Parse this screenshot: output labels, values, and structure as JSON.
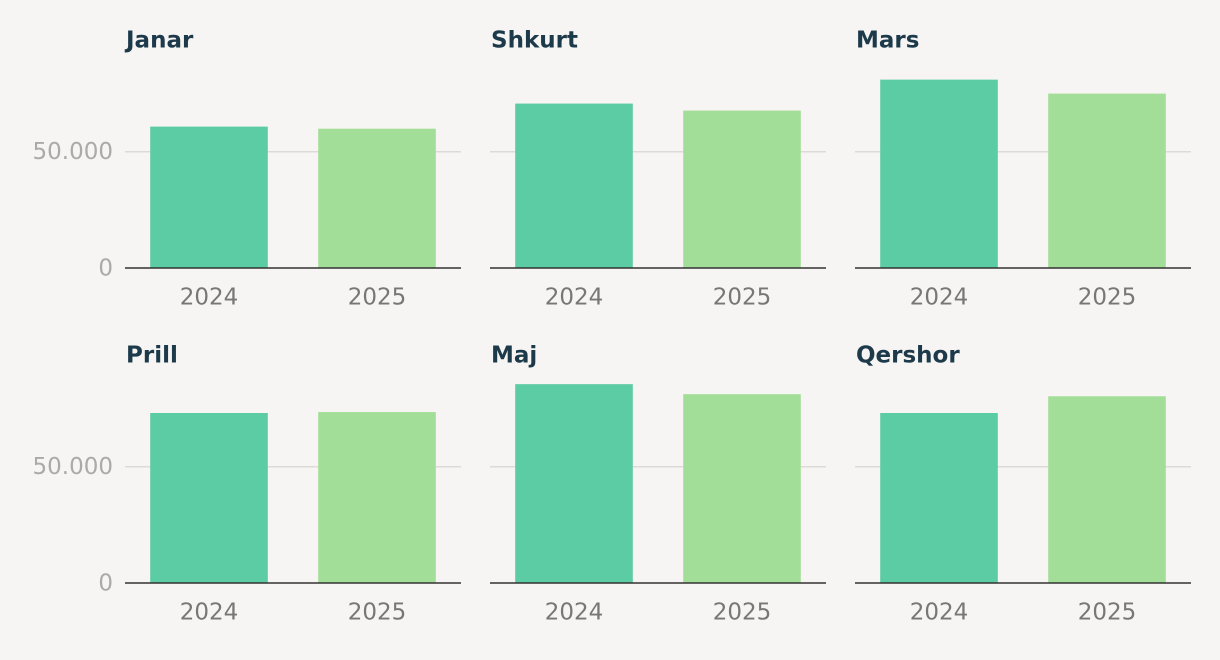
{
  "chart_data": [
    {
      "type": "bar",
      "title": "Janar",
      "categories": [
        "2024",
        "2025"
      ],
      "values": [
        60800,
        59900
      ],
      "colors": [
        "#5ccca4",
        "#a3de98"
      ],
      "ylim": [
        0,
        86000
      ],
      "yticks": [
        0,
        {
          "value": 50000,
          "label": "50.000"
        }
      ],
      "grid": true
    },
    {
      "type": "bar",
      "title": "Shkurt",
      "categories": [
        "2024",
        "2025"
      ],
      "values": [
        70700,
        67700
      ],
      "colors": [
        "#5ccca4",
        "#a3de98"
      ],
      "ylim": [
        0,
        86000
      ],
      "sharey": true,
      "grid": true
    },
    {
      "type": "bar",
      "title": "Mars",
      "categories": [
        "2024",
        "2025"
      ],
      "values": [
        81000,
        75000
      ],
      "colors": [
        "#5ccca4",
        "#a3de98"
      ],
      "ylim": [
        0,
        86000
      ],
      "sharey": true,
      "grid": true
    },
    {
      "type": "bar",
      "title": "Prill",
      "categories": [
        "2024",
        "2025"
      ],
      "values": [
        73100,
        73500
      ],
      "colors": [
        "#5ccca4",
        "#a3de98"
      ],
      "ylim": [
        0,
        86000
      ],
      "yticks": [
        0,
        {
          "value": 50000,
          "label": "50.000"
        }
      ],
      "grid": true
    },
    {
      "type": "bar",
      "title": "Maj",
      "categories": [
        "2024",
        "2025"
      ],
      "values": [
        85500,
        81200
      ],
      "colors": [
        "#5ccca4",
        "#a3de98"
      ],
      "ylim": [
        0,
        86000
      ],
      "sharey": true,
      "grid": true
    },
    {
      "type": "bar",
      "title": "Qershor",
      "categories": [
        "2024",
        "2025"
      ],
      "values": [
        73100,
        80300
      ],
      "colors": [
        "#5ccca4",
        "#a3de98"
      ],
      "ylim": [
        0,
        86000
      ],
      "sharey": true,
      "grid": true
    }
  ]
}
